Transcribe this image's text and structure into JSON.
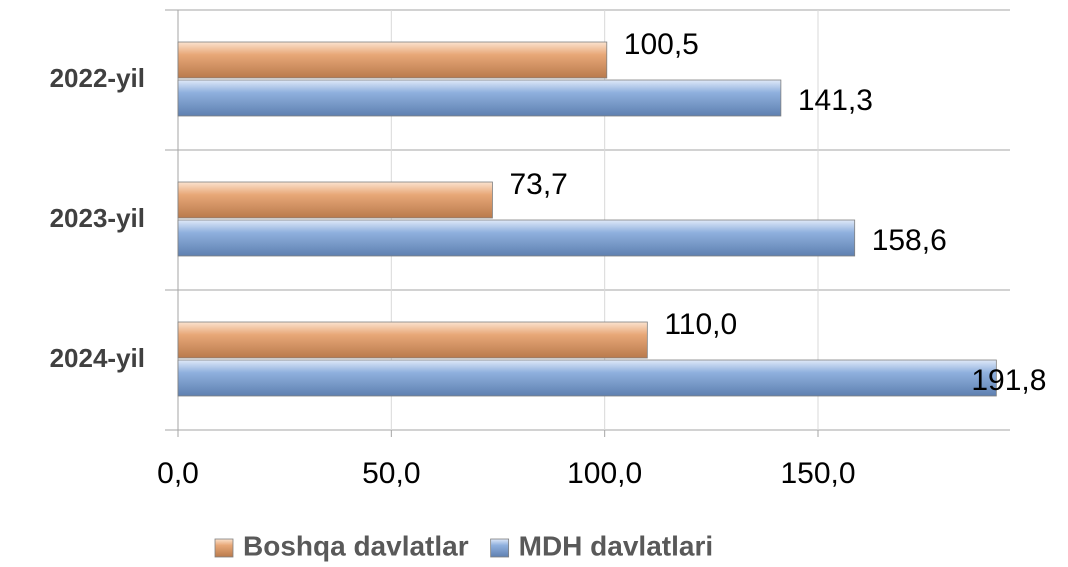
{
  "chart_data": {
    "type": "hbar",
    "categories": [
      "2022-yil",
      "2023-yil",
      "2024-yil"
    ],
    "series": [
      {
        "name": "Boshqa davlatlar",
        "color": "#e8a878",
        "values": [
          100.5,
          73.7,
          110.0
        ],
        "value_labels": [
          "100,5",
          "73,7",
          "110,0"
        ]
      },
      {
        "name": "MDH davlatlari",
        "color": "#8fb0de",
        "values": [
          141.3,
          158.6,
          191.8
        ],
        "value_labels": [
          "141,3",
          "158,6",
          "191,8"
        ]
      }
    ],
    "xlim": [
      0,
      195
    ],
    "xticks": [
      {
        "value": 0,
        "label": "0,0"
      },
      {
        "value": 50,
        "label": "50,0"
      },
      {
        "value": 100,
        "label": "100,0"
      },
      {
        "value": 150,
        "label": "150,0"
      }
    ],
    "grid": true,
    "legend": "bottom"
  }
}
